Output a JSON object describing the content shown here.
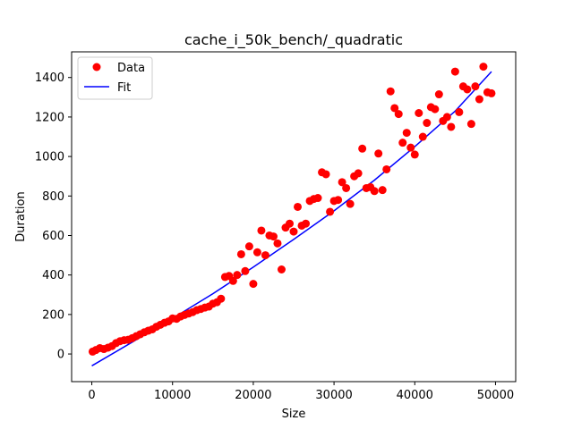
{
  "chart_data": {
    "type": "scatter",
    "title": "cache_i_50k_bench/_quadratic",
    "xlabel": "Size",
    "ylabel": "Duration",
    "xlim": [
      -2500,
      52500
    ],
    "ylim": [
      -140,
      1530
    ],
    "xticks": [
      0,
      10000,
      20000,
      30000,
      40000,
      50000
    ],
    "xtick_labels": [
      "0",
      "10000",
      "20000",
      "30000",
      "40000",
      "50000"
    ],
    "yticks": [
      0,
      200,
      400,
      600,
      800,
      1000,
      1200,
      1400
    ],
    "ytick_labels": [
      "0",
      "200",
      "400",
      "600",
      "800",
      "1000",
      "1200",
      "1400"
    ],
    "grid": false,
    "legend": {
      "placement": "top-left",
      "entries": [
        "Data",
        "Fit"
      ]
    },
    "colors": {
      "data": "#ff0000",
      "fit": "#0000ff"
    },
    "series": [
      {
        "name": "Data",
        "kind": "scatter",
        "x": [
          100,
          500,
          1000,
          1500,
          2000,
          2500,
          3000,
          3500,
          4000,
          4500,
          5000,
          5500,
          6000,
          6500,
          7000,
          7500,
          8000,
          8500,
          9000,
          9500,
          10000,
          10500,
          11000,
          11500,
          12000,
          12500,
          13000,
          13500,
          14000,
          14500,
          15000,
          15500,
          16000,
          16500,
          17000,
          17500,
          18000,
          18500,
          19000,
          19500,
          20000,
          20500,
          21000,
          21500,
          22000,
          22500,
          23000,
          23500,
          24000,
          24500,
          25000,
          25500,
          26000,
          26500,
          27000,
          27500,
          28000,
          28500,
          29000,
          29500,
          30000,
          30500,
          31000,
          31500,
          32000,
          32500,
          33000,
          33500,
          34000,
          34500,
          35000,
          35500,
          36000,
          36500,
          37000,
          37500,
          38000,
          38500,
          39000,
          39500,
          40000,
          40500,
          41000,
          41500,
          42000,
          42500,
          43000,
          43500,
          44000,
          44500,
          45000,
          45500,
          46000,
          46500,
          47000,
          47500,
          48000,
          48500,
          49000,
          49500
        ],
        "y": [
          12,
          20,
          30,
          25,
          32,
          40,
          55,
          65,
          70,
          72,
          80,
          90,
          100,
          110,
          118,
          125,
          138,
          148,
          158,
          165,
          180,
          178,
          190,
          198,
          205,
          212,
          222,
          228,
          235,
          240,
          255,
          262,
          280,
          390,
          395,
          370,
          400,
          505,
          420,
          545,
          355,
          515,
          625,
          500,
          600,
          595,
          560,
          428,
          640,
          660,
          620,
          745,
          650,
          660,
          775,
          785,
          790,
          920,
          910,
          720,
          775,
          780,
          870,
          840,
          760,
          900,
          915,
          1040,
          840,
          845,
          825,
          1015,
          830,
          935,
          1330,
          1245,
          1215,
          1070,
          1120,
          1045,
          1010,
          1220,
          1100,
          1170,
          1250,
          1240,
          1315,
          1180,
          1200,
          1150,
          1430,
          1225,
          1355,
          1340,
          1165,
          1355,
          1290,
          1455,
          1325,
          1320
        ]
      },
      {
        "name": "Fit",
        "kind": "line",
        "x": [
          0,
          5000,
          10000,
          15000,
          20000,
          25000,
          30000,
          35000,
          40000,
          45000,
          49500
        ],
        "y": [
          -60,
          60,
          180,
          305,
          440,
          580,
          725,
          880,
          1050,
          1230,
          1430
        ]
      }
    ]
  }
}
